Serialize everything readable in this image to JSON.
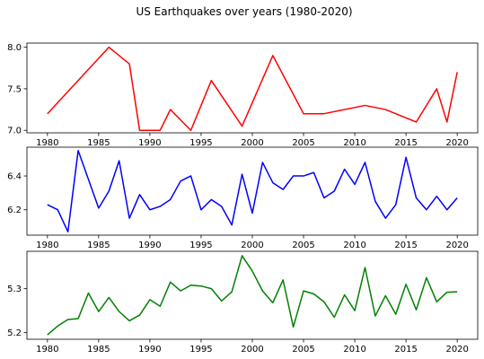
{
  "figure": {
    "suptitle": "US Earthquakes over years (1980-2020)"
  },
  "chart_data": [
    {
      "type": "line",
      "color": "#ff0000",
      "xlim": [
        1978,
        2022
      ],
      "ylim": [
        6.97,
        8.05
      ],
      "xticks": [
        1980,
        1985,
        1990,
        1995,
        2000,
        2005,
        2010,
        2015,
        2020
      ],
      "yticks": [
        7.0,
        7.5,
        8.0
      ],
      "ytick_labels": [
        "7.0",
        "7.5",
        "8.0"
      ],
      "x": [
        1980,
        1986,
        1988,
        1989,
        1991,
        1992,
        1994,
        1996,
        1999,
        2002,
        2005,
        2007,
        2011,
        2013,
        2016,
        2018,
        2019,
        2020
      ],
      "y": [
        7.2,
        8.0,
        7.8,
        7.0,
        7.0,
        7.25,
        7.0,
        7.6,
        7.05,
        7.9,
        7.2,
        7.2,
        7.3,
        7.25,
        7.1,
        7.5,
        7.1,
        7.7
      ]
    },
    {
      "type": "line",
      "color": "#0000ff",
      "xlim": [
        1978,
        2022
      ],
      "ylim": [
        6.05,
        6.57
      ],
      "xticks": [
        1980,
        1985,
        1990,
        1995,
        2000,
        2005,
        2010,
        2015,
        2020
      ],
      "yticks": [
        6.2,
        6.4
      ],
      "ytick_labels": [
        "6.2",
        "6.4"
      ],
      "x": [
        1980,
        1981,
        1982,
        1983,
        1984,
        1985,
        1986,
        1987,
        1988,
        1989,
        1990,
        1991,
        1992,
        1993,
        1994,
        1995,
        1996,
        1997,
        1998,
        1999,
        2000,
        2001,
        2002,
        2003,
        2004,
        2005,
        2006,
        2007,
        2008,
        2009,
        2010,
        2011,
        2012,
        2013,
        2014,
        2015,
        2016,
        2017,
        2018,
        2019,
        2020
      ],
      "y": [
        6.23,
        6.2,
        6.07,
        6.55,
        6.38,
        6.21,
        6.31,
        6.49,
        6.15,
        6.29,
        6.2,
        6.22,
        6.26,
        6.37,
        6.4,
        6.2,
        6.26,
        6.22,
        6.11,
        6.41,
        6.18,
        6.48,
        6.36,
        6.32,
        6.4,
        6.4,
        6.42,
        6.27,
        6.31,
        6.44,
        6.35,
        6.48,
        6.25,
        6.15,
        6.23,
        6.51,
        6.27,
        6.2,
        6.28,
        6.2,
        6.27
      ]
    },
    {
      "type": "line",
      "color": "#008000",
      "xlim": [
        1978,
        2022
      ],
      "ylim": [
        5.185,
        5.385
      ],
      "xticks": [
        1980,
        1985,
        1990,
        1995,
        2000,
        2005,
        2010,
        2015,
        2020
      ],
      "yticks": [
        5.2,
        5.3
      ],
      "ytick_labels": [
        "5.2",
        "5.3"
      ],
      "x": [
        1980,
        1981,
        1982,
        1983,
        1984,
        1985,
        1986,
        1987,
        1988,
        1989,
        1990,
        1991,
        1992,
        1993,
        1994,
        1995,
        1996,
        1997,
        1998,
        1999,
        2000,
        2001,
        2002,
        2003,
        2004,
        2005,
        2006,
        2007,
        2008,
        2009,
        2010,
        2011,
        2012,
        2013,
        2014,
        2015,
        2016,
        2017,
        2018,
        2019,
        2020
      ],
      "y": [
        5.195,
        5.215,
        5.23,
        5.232,
        5.29,
        5.248,
        5.28,
        5.248,
        5.227,
        5.24,
        5.275,
        5.26,
        5.315,
        5.295,
        5.308,
        5.306,
        5.3,
        5.272,
        5.293,
        5.375,
        5.34,
        5.295,
        5.268,
        5.32,
        5.213,
        5.295,
        5.288,
        5.27,
        5.235,
        5.286,
        5.25,
        5.348,
        5.238,
        5.284,
        5.242,
        5.31,
        5.252,
        5.325,
        5.27,
        5.292,
        5.293
      ]
    }
  ]
}
